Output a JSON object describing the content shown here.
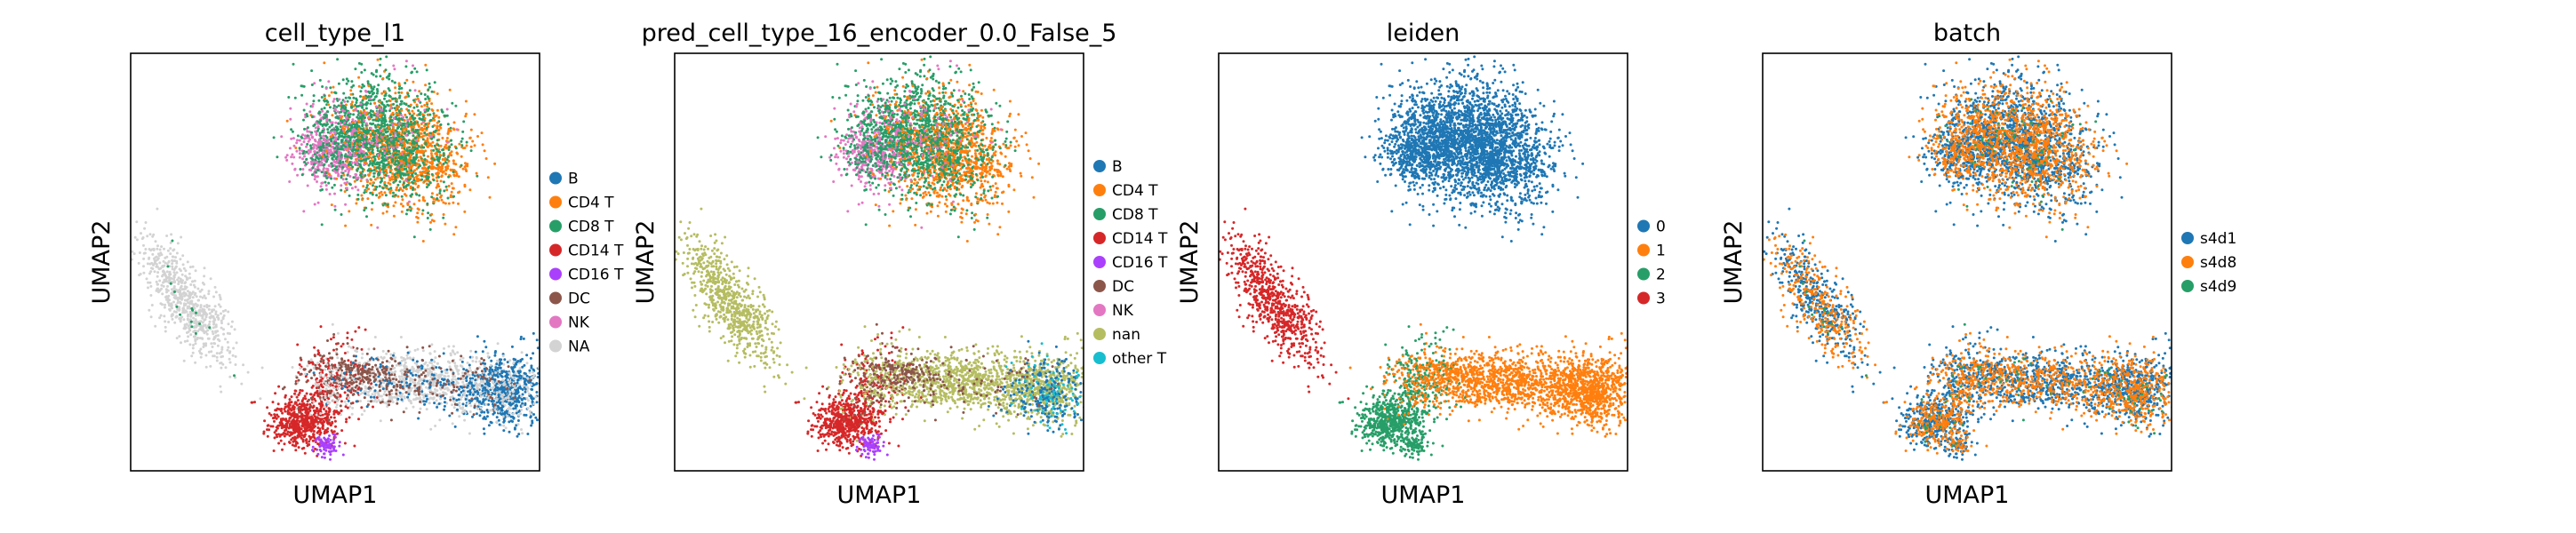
{
  "figure": {
    "panels": [
      {
        "title": "cell_type_l1",
        "xlabel": "UMAP1",
        "ylabel": "UMAP2",
        "legend": [
          {
            "label": "B",
            "color": "#1f77b4"
          },
          {
            "label": "CD4 T",
            "color": "#ff7f0e"
          },
          {
            "label": "CD8 T",
            "color": "#279e68"
          },
          {
            "label": "CD14 T",
            "color": "#d62728"
          },
          {
            "label": "CD16 T",
            "color": "#aa40fc"
          },
          {
            "label": "DC",
            "color": "#8c564b"
          },
          {
            "label": "NK",
            "color": "#e377c2"
          },
          {
            "label": "NA",
            "color": "#d3d3d3"
          }
        ]
      },
      {
        "title": "pred_cell_type_16_encoder_0.0_False_5",
        "xlabel": "UMAP1",
        "ylabel": "UMAP2",
        "legend": [
          {
            "label": "B",
            "color": "#1f77b4"
          },
          {
            "label": "CD4 T",
            "color": "#ff7f0e"
          },
          {
            "label": "CD8 T",
            "color": "#279e68"
          },
          {
            "label": "CD14 T",
            "color": "#d62728"
          },
          {
            "label": "CD16 T",
            "color": "#aa40fc"
          },
          {
            "label": "DC",
            "color": "#8c564b"
          },
          {
            "label": "NK",
            "color": "#e377c2"
          },
          {
            "label": "nan",
            "color": "#b5bd61"
          },
          {
            "label": "other T",
            "color": "#17becf"
          }
        ]
      },
      {
        "title": "leiden",
        "xlabel": "UMAP1",
        "ylabel": "UMAP2",
        "legend": [
          {
            "label": "0",
            "color": "#1f77b4"
          },
          {
            "label": "1",
            "color": "#ff7f0e"
          },
          {
            "label": "2",
            "color": "#279e68"
          },
          {
            "label": "3",
            "color": "#d62728"
          }
        ]
      },
      {
        "title": "batch",
        "xlabel": "UMAP1",
        "ylabel": "UMAP2",
        "legend": [
          {
            "label": "s4d1",
            "color": "#1f77b4"
          },
          {
            "label": "s4d8",
            "color": "#ff7f0e"
          },
          {
            "label": "s4d9",
            "color": "#279e68"
          }
        ]
      }
    ]
  },
  "chart_data": [
    {
      "type": "scatter",
      "title": "cell_type_l1",
      "xlabel": "UMAP1",
      "ylabel": "UMAP2",
      "grid": false,
      "legend_position": "right",
      "series": [
        {
          "name": "B",
          "color": "#1f77b4"
        },
        {
          "name": "CD4 T",
          "color": "#ff7f0e"
        },
        {
          "name": "CD8 T",
          "color": "#279e68"
        },
        {
          "name": "CD14 T",
          "color": "#d62728"
        },
        {
          "name": "CD16 T",
          "color": "#aa40fc"
        },
        {
          "name": "DC",
          "color": "#8c564b"
        },
        {
          "name": "NK",
          "color": "#e377c2"
        },
        {
          "name": "NA",
          "color": "#d3d3d3"
        }
      ]
    },
    {
      "type": "scatter",
      "title": "pred_cell_type_16_encoder_0.0_False_5",
      "xlabel": "UMAP1",
      "ylabel": "UMAP2",
      "grid": false,
      "legend_position": "right",
      "series": [
        {
          "name": "B",
          "color": "#1f77b4"
        },
        {
          "name": "CD4 T",
          "color": "#ff7f0e"
        },
        {
          "name": "CD8 T",
          "color": "#279e68"
        },
        {
          "name": "CD14 T",
          "color": "#d62728"
        },
        {
          "name": "CD16 T",
          "color": "#aa40fc"
        },
        {
          "name": "DC",
          "color": "#8c564b"
        },
        {
          "name": "NK",
          "color": "#e377c2"
        },
        {
          "name": "nan",
          "color": "#b5bd61"
        },
        {
          "name": "other T",
          "color": "#17becf"
        }
      ]
    },
    {
      "type": "scatter",
      "title": "leiden",
      "xlabel": "UMAP1",
      "ylabel": "UMAP2",
      "grid": false,
      "legend_position": "right",
      "series": [
        {
          "name": "0",
          "color": "#1f77b4"
        },
        {
          "name": "1",
          "color": "#ff7f0e"
        },
        {
          "name": "2",
          "color": "#279e68"
        },
        {
          "name": "3",
          "color": "#d62728"
        }
      ]
    },
    {
      "type": "scatter",
      "title": "batch",
      "xlabel": "UMAP1",
      "ylabel": "UMAP2",
      "grid": false,
      "legend_position": "right",
      "series": [
        {
          "name": "s4d1",
          "color": "#1f77b4"
        },
        {
          "name": "s4d8",
          "color": "#ff7f0e"
        },
        {
          "name": "s4d9",
          "color": "#279e68"
        }
      ]
    }
  ]
}
